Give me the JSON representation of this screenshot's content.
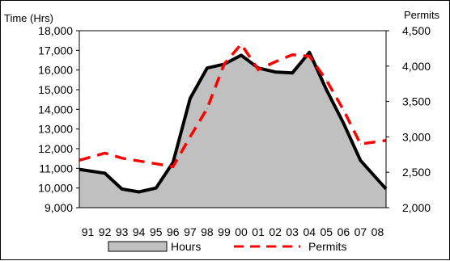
{
  "chart_data": {
    "type": "area",
    "categories": [
      "91",
      "92",
      "93",
      "94",
      "95",
      "96",
      "97",
      "98",
      "99",
      "00",
      "01",
      "02",
      "03",
      "04",
      "05",
      "06",
      "07",
      "08"
    ],
    "y_left": {
      "label": "Time (Hrs)",
      "ticks": [
        "9,000",
        "10,000",
        "11,000",
        "12,000",
        "13,000",
        "14,000",
        "15,000",
        "16,000",
        "17,000",
        "18,000"
      ],
      "range": [
        9000,
        18000
      ]
    },
    "y_right": {
      "label": "Permits",
      "ticks": [
        "2,000",
        "2,500",
        "3,000",
        "3,500",
        "4,000",
        "4,500"
      ],
      "range": [
        2000,
        4500
      ]
    },
    "series": [
      {
        "name": "Hours",
        "axis": "left",
        "style": "area",
        "fill": "#c0c0c0",
        "line": "#000000",
        "values": [
          10950,
          10750,
          9950,
          9800,
          10000,
          11300,
          14550,
          16100,
          16300,
          16750,
          16100,
          15900,
          15850,
          16900,
          15000,
          13300,
          11400,
          9950
        ]
      },
      {
        "name": "Permits",
        "axis": "right",
        "style": "dashed-line",
        "color": "#ff0000",
        "values": [
          2670,
          2770,
          2700,
          2660,
          2620,
          2580,
          3000,
          3400,
          4030,
          4310,
          3950,
          4060,
          4160,
          4140,
          3800,
          3380,
          2900,
          2950
        ]
      }
    ],
    "grid": false,
    "legend": {
      "position": "bottom",
      "entries": [
        "Hours",
        "Permits"
      ]
    }
  }
}
